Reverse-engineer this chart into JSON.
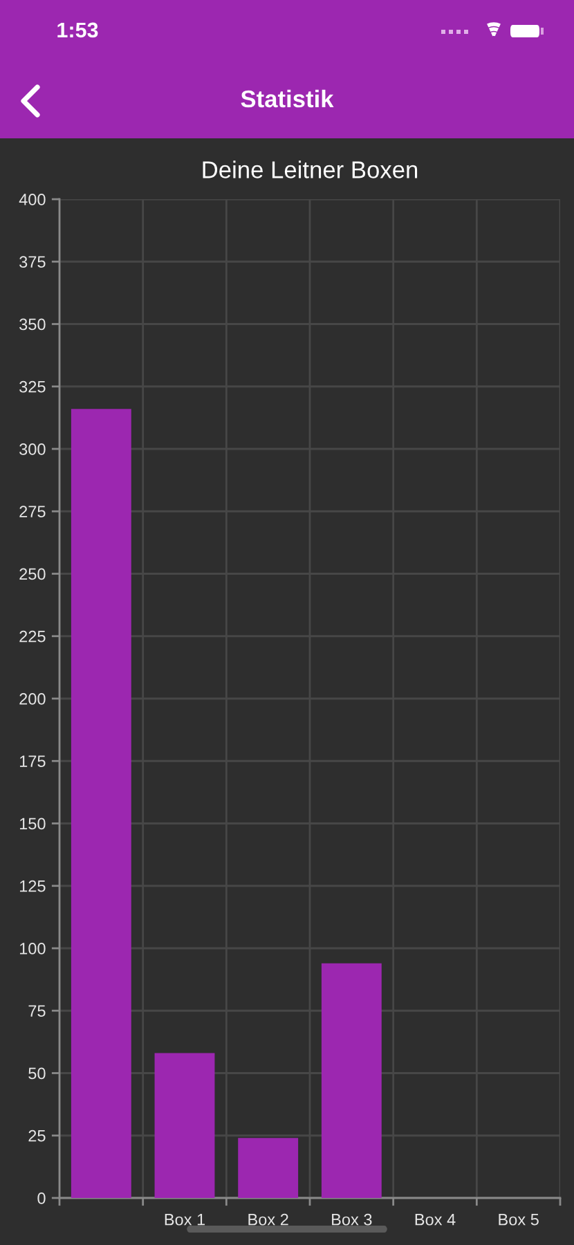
{
  "chart_data": {
    "type": "bar",
    "title": "Deine Leitner Boxen",
    "annotations": [
      "1:53",
      "Statistik"
    ],
    "categories": [
      null,
      "Box 1",
      "Box 2",
      "Box 3",
      "Box 4",
      "Box 5"
    ],
    "values": [
      316,
      58,
      24,
      94,
      0,
      0
    ],
    "color": "#9c27b0",
    "ylim": [
      0,
      400
    ],
    "yticks": [
      0,
      25,
      50,
      75,
      100,
      125,
      150,
      175,
      200,
      225,
      250,
      275,
      300,
      325,
      350,
      375,
      400
    ],
    "grid": true
  }
}
